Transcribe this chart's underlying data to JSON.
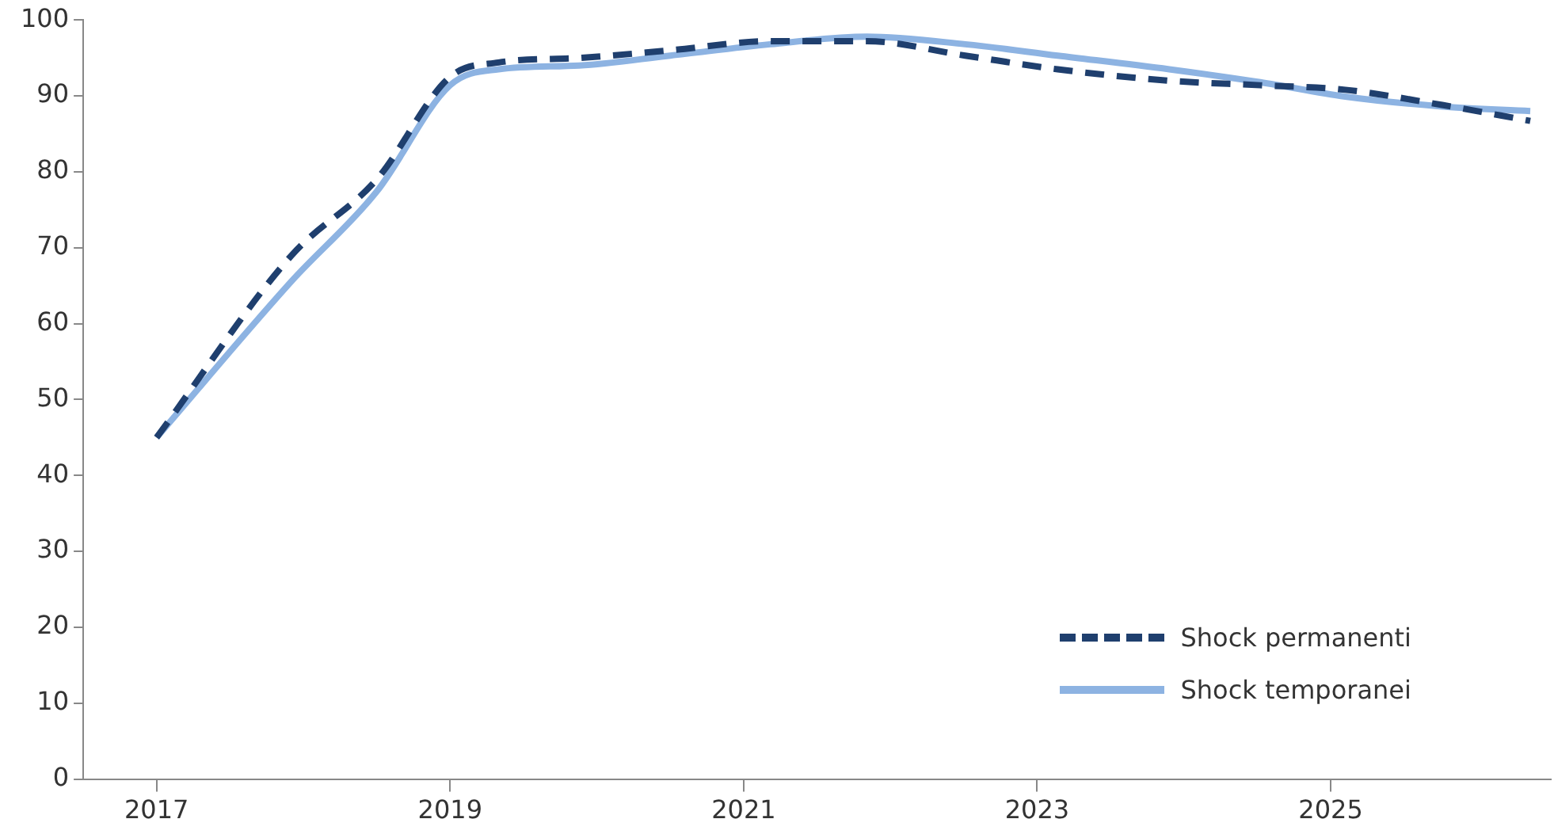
{
  "chart_data": {
    "type": "line",
    "x": [
      2017,
      2017.92,
      2018.5,
      2019,
      2019.33,
      2019.88,
      2020.5,
      2021.18,
      2021.84,
      2022.51,
      2023.14,
      2023.9,
      2024.52,
      2025.1,
      2025.76,
      2026.36
    ],
    "series": [
      {
        "name": "Shock permanenti",
        "color": "#1f3f6e",
        "line_style": "dashed",
        "values": [
          45,
          69,
          79,
          92.5,
          94.4,
          95,
          96,
          97.2,
          97.2,
          95.3,
          93.5,
          92,
          91.4,
          90.8,
          88.8,
          86.7
        ]
      },
      {
        "name": "Shock temporanei",
        "color": "#8db3e2",
        "line_style": "solid",
        "values": [
          45,
          65.6,
          77.4,
          91.4,
          93.5,
          94,
          95.3,
          96.8,
          97.8,
          96.8,
          95.3,
          93.5,
          91.8,
          89.9,
          88.6,
          88
        ]
      }
    ],
    "xlim": [
      2016.5,
      2026.5
    ],
    "xticks": [
      2017,
      2019,
      2021,
      2023,
      2025
    ],
    "ylim": [
      0,
      100
    ],
    "yticks": [
      0,
      10,
      20,
      30,
      40,
      50,
      60,
      70,
      80,
      90,
      100
    ],
    "grid": false,
    "legend": "bottom right",
    "marker": "none"
  }
}
